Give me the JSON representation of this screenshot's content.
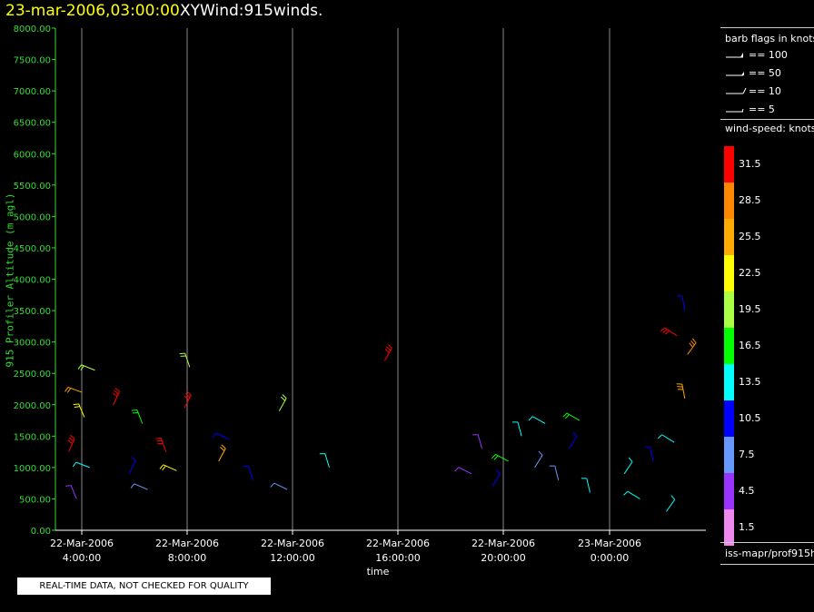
{
  "header": {
    "date": "23-mar-2006,03:00:00",
    "name": "XYWind:915winds."
  },
  "chart_data": {
    "type": "scatter",
    "title": "23-mar-2006,03:00:00 XYWind:915winds.",
    "xlabel": "time",
    "ylabel": "915 Profiler Altitude (m agl)",
    "ylim": [
      0,
      8000
    ],
    "y_ticks": [
      "0.00",
      "500.00",
      "1000.00",
      "1500.00",
      "2000.00",
      "2500.00",
      "3000.00",
      "3500.00",
      "4000.00",
      "4500.00",
      "5000.00",
      "5500.00",
      "6000.00",
      "6500.00",
      "7000.00",
      "7500.00",
      "8000.00"
    ],
    "x_ticks": [
      {
        "date": "22-Mar-2006",
        "time": "4:00:00"
      },
      {
        "date": "22-Mar-2006",
        "time": "8:00:00"
      },
      {
        "date": "22-Mar-2006",
        "time": "12:00:00"
      },
      {
        "date": "22-Mar-2006",
        "time": "16:00:00"
      },
      {
        "date": "22-Mar-2006",
        "time": "20:00:00"
      },
      {
        "date": "23-Mar-2006",
        "time": "0:00:00"
      }
    ],
    "xlim_hours": [
      3,
      27.7
    ],
    "grid": "vertical",
    "axis_color": "#33dd33",
    "wind_barbs": [
      {
        "t": 4.0,
        "alt": 2200,
        "spd": 24
      },
      {
        "t": 4.1,
        "alt": 1800,
        "spd": 22
      },
      {
        "t": 3.5,
        "alt": 1250,
        "spd": 30
      },
      {
        "t": 4.3,
        "alt": 1000,
        "spd": 14
      },
      {
        "t": 3.8,
        "alt": 500,
        "spd": 5
      },
      {
        "t": 5.2,
        "alt": 2000,
        "spd": 30
      },
      {
        "t": 4.5,
        "alt": 2550,
        "spd": 18
      },
      {
        "t": 6.3,
        "alt": 1700,
        "spd": 16
      },
      {
        "t": 5.8,
        "alt": 900,
        "spd": 9
      },
      {
        "t": 6.5,
        "alt": 650,
        "spd": 6
      },
      {
        "t": 7.2,
        "alt": 1250,
        "spd": 30
      },
      {
        "t": 7.9,
        "alt": 1950,
        "spd": 31
      },
      {
        "t": 7.6,
        "alt": 950,
        "spd": 22
      },
      {
        "t": 8.1,
        "alt": 2600,
        "spd": 18
      },
      {
        "t": 9.2,
        "alt": 1100,
        "spd": 24
      },
      {
        "t": 9.6,
        "alt": 1450,
        "spd": 11
      },
      {
        "t": 10.5,
        "alt": 800,
        "spd": 9
      },
      {
        "t": 11.5,
        "alt": 1900,
        "spd": 18
      },
      {
        "t": 11.8,
        "alt": 650,
        "spd": 6
      },
      {
        "t": 13.4,
        "alt": 1000,
        "spd": 14
      },
      {
        "t": 15.5,
        "alt": 2700,
        "spd": 31
      },
      {
        "t": 18.8,
        "alt": 900,
        "spd": 4
      },
      {
        "t": 19.2,
        "alt": 1300,
        "spd": 5
      },
      {
        "t": 19.6,
        "alt": 700,
        "spd": 11
      },
      {
        "t": 20.2,
        "alt": 1100,
        "spd": 17
      },
      {
        "t": 20.7,
        "alt": 1500,
        "spd": 14
      },
      {
        "t": 21.2,
        "alt": 1000,
        "spd": 8
      },
      {
        "t": 21.6,
        "alt": 1700,
        "spd": 12
      },
      {
        "t": 22.1,
        "alt": 800,
        "spd": 6
      },
      {
        "t": 22.5,
        "alt": 1300,
        "spd": 10
      },
      {
        "t": 22.9,
        "alt": 1750,
        "spd": 17
      },
      {
        "t": 23.3,
        "alt": 600,
        "spd": 13
      },
      {
        "t": 24.6,
        "alt": 900,
        "spd": 12
      },
      {
        "t": 25.2,
        "alt": 500,
        "spd": 14
      },
      {
        "t": 25.7,
        "alt": 1100,
        "spd": 11
      },
      {
        "t": 26.2,
        "alt": 300,
        "spd": 14
      },
      {
        "t": 26.5,
        "alt": 1400,
        "spd": 12
      },
      {
        "t": 26.9,
        "alt": 2100,
        "spd": 25
      },
      {
        "t": 27.0,
        "alt": 2800,
        "spd": 27
      },
      {
        "t": 26.6,
        "alt": 3100,
        "spd": 31
      },
      {
        "t": 26.9,
        "alt": 3500,
        "spd": 10
      }
    ]
  },
  "legend": {
    "barb_title": "barb flags in knots",
    "barbs": [
      {
        "label": "== 100"
      },
      {
        "label": "== 50"
      },
      {
        "label": "== 10"
      },
      {
        "label": "== 5"
      }
    ],
    "speed_title": "wind-speed: knots",
    "speed_colors": [
      "#ee88ee",
      "#9933ff",
      "#6699ff",
      "#0000ff",
      "#00ffff",
      "#00ff00",
      "#aaff44",
      "#ffff00",
      "#ffaa00",
      "#ff8800",
      "#ff0000"
    ],
    "speed_labels": [
      "1.5",
      "4.5",
      "7.5",
      "10.5",
      "13.5",
      "16.5",
      "19.5",
      "22.5",
      "25.5",
      "28.5",
      "31.5"
    ],
    "source": "iss-mapr/prof915h"
  },
  "footer_note": "REAL-TIME DATA, NOT CHECKED FOR QUALITY"
}
